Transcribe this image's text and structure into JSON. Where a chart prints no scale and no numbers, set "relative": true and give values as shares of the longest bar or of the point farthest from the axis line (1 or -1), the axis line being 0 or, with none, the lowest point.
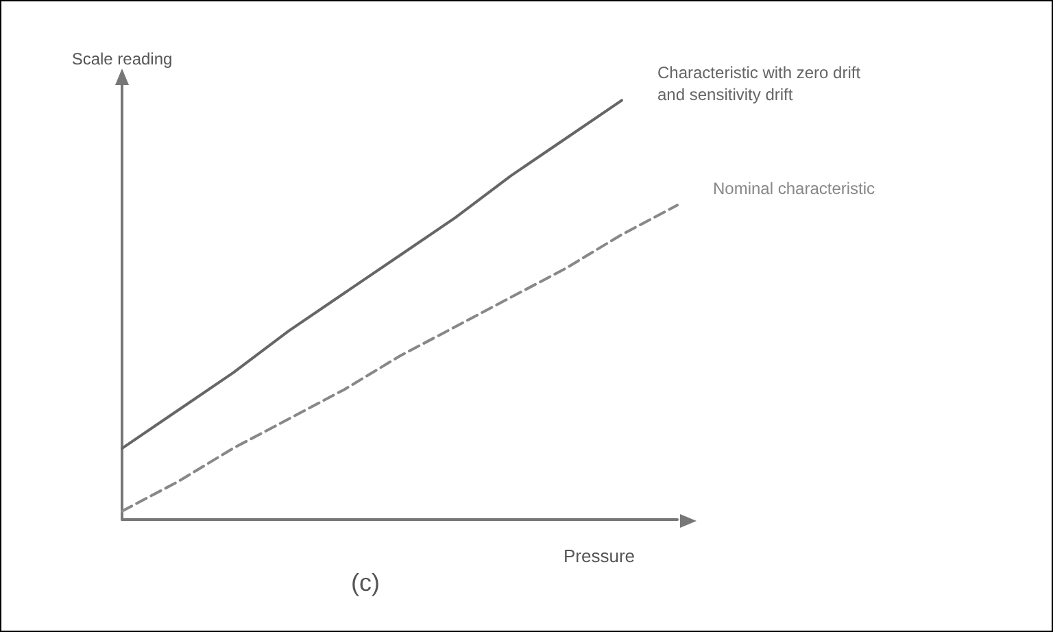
{
  "chart_data": {
    "type": "line",
    "relative": true,
    "xlabel": "Pressure",
    "ylabel": "Scale reading",
    "annotations": [
      "(c)"
    ],
    "categories": [
      null,
      null,
      null,
      null,
      null,
      null,
      null,
      null,
      null,
      null,
      null
    ],
    "grid": false,
    "legend": false,
    "marker": "none",
    "series": [
      {
        "name": "Characteristic with zero drift and sensitivity drift",
        "color": "#666666",
        "line_style": "solid",
        "values": [
          0.17,
          0.26,
          0.35,
          0.45,
          0.54,
          0.63,
          0.72,
          0.82,
          0.91,
          1,
          null
        ]
      },
      {
        "name": "Nominal characteristic",
        "color": "#888888",
        "line_style": "dashed",
        "values": [
          0.02,
          0.09,
          0.17,
          0.24,
          0.31,
          0.39,
          0.46,
          0.53,
          0.6,
          0.68,
          0.75
        ]
      }
    ]
  }
}
